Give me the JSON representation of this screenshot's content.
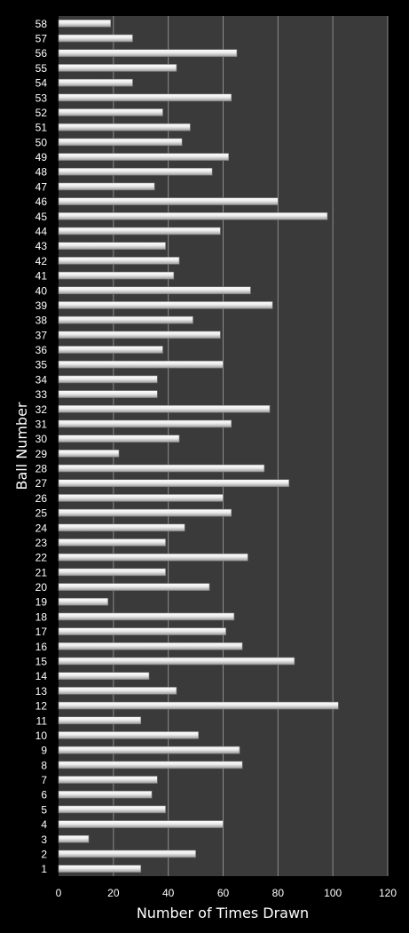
{
  "chart_data": {
    "type": "bar",
    "orientation": "horizontal",
    "title": "",
    "xlabel": "Number of Times Drawn",
    "ylabel": "Ball Number",
    "xlim": [
      0,
      120
    ],
    "x_ticks": [
      0,
      20,
      40,
      60,
      80,
      100,
      120
    ],
    "grid": "vertical",
    "legend": "none",
    "categories": [
      "1",
      "2",
      "3",
      "4",
      "5",
      "6",
      "7",
      "8",
      "9",
      "10",
      "11",
      "12",
      "13",
      "14",
      "15",
      "16",
      "17",
      "18",
      "19",
      "20",
      "21",
      "22",
      "23",
      "24",
      "25",
      "26",
      "27",
      "28",
      "29",
      "30",
      "31",
      "32",
      "33",
      "34",
      "35",
      "36",
      "37",
      "38",
      "39",
      "40",
      "41",
      "42",
      "43",
      "44",
      "45",
      "46",
      "47",
      "48",
      "49",
      "50",
      "51",
      "52",
      "53",
      "54",
      "55",
      "56",
      "57",
      "58"
    ],
    "values": [
      30,
      50,
      11,
      60,
      39,
      34,
      36,
      67,
      66,
      51,
      30,
      102,
      43,
      33,
      86,
      67,
      61,
      64,
      18,
      55,
      39,
      69,
      39,
      46,
      63,
      60,
      84,
      75,
      22,
      44,
      63,
      77,
      36,
      36,
      60,
      38,
      59,
      49,
      78,
      70,
      42,
      44,
      39,
      59,
      98,
      80,
      35,
      56,
      62,
      45,
      48,
      38,
      63,
      27,
      43,
      65,
      27,
      19
    ],
    "colors": {
      "background": "#000000",
      "plot_area": "#3a3a3a",
      "gridline": "#8c8c8c",
      "bar_fill": "#ececec",
      "text": "#ffffff"
    }
  }
}
